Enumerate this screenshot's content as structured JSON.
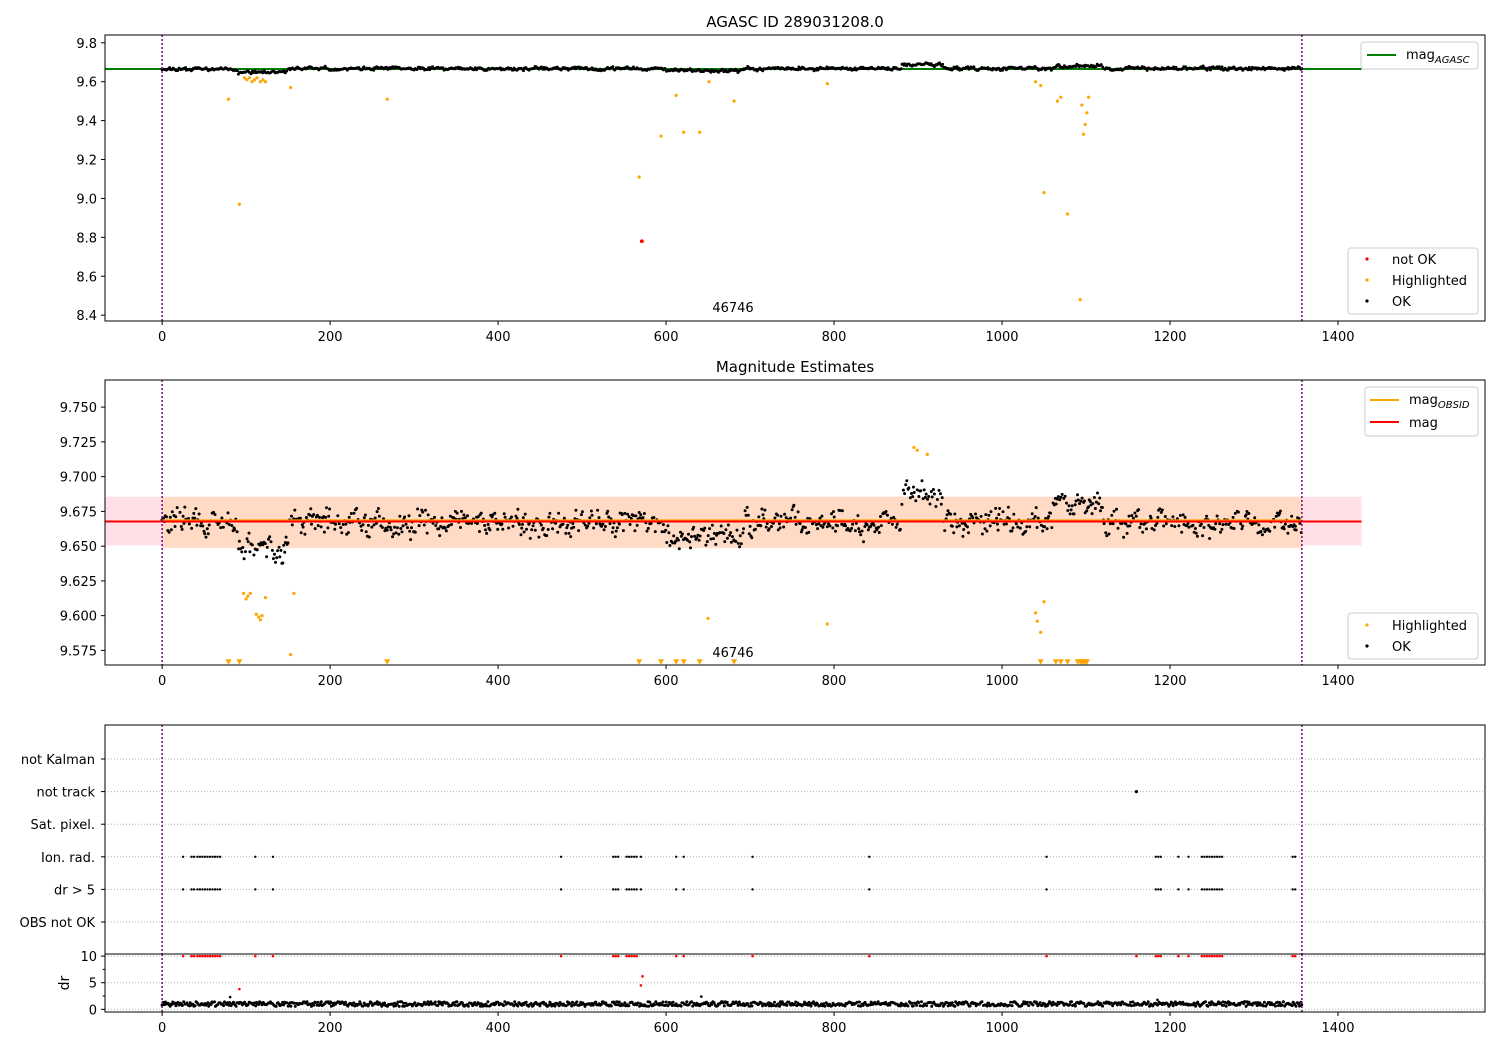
{
  "chart_data": [
    {
      "type": "scatter",
      "title": "AGASC ID 289031208.0",
      "xlim": [
        -68,
        1575
      ],
      "ylim": [
        8.37,
        9.84
      ],
      "xticks": [
        0,
        200,
        400,
        600,
        800,
        1000,
        1200,
        1400
      ],
      "yticks": [
        8.4,
        8.6,
        8.8,
        9.0,
        9.2,
        9.4,
        9.6,
        9.8
      ],
      "ytick_labels": [
        "8.4",
        "8.6",
        "8.8",
        "9.0",
        "9.2",
        "9.4",
        "9.6",
        "9.8"
      ],
      "vlines": [
        0,
        1357
      ],
      "annotation": {
        "text": "46746",
        "x": 678,
        "y": 8.405
      },
      "lines": [
        {
          "label": "mag",
          "subscript": "AGASC",
          "color": "#008000",
          "y": 9.665,
          "x": [
            -68,
            1428
          ]
        }
      ],
      "ok_band": {
        "center": 9.667,
        "spread": 0.012,
        "xmax": 1357
      },
      "highlighted": {
        "x": [
          79,
          92,
          98,
          101,
          104,
          107,
          110,
          113,
          117,
          120,
          123,
          153,
          268,
          568,
          572,
          594,
          612,
          621,
          640,
          651,
          681,
          792,
          1040,
          1046,
          1050,
          1066,
          1070,
          1078,
          1093,
          1095,
          1097,
          1099,
          1101,
          1103
        ],
        "y": [
          9.51,
          8.97,
          9.62,
          9.61,
          9.62,
          9.6,
          9.61,
          9.62,
          9.6,
          9.61,
          9.6,
          9.57,
          9.51,
          9.11,
          8.78,
          9.32,
          9.53,
          9.34,
          9.34,
          9.6,
          9.5,
          9.59,
          9.6,
          9.58,
          9.03,
          9.5,
          9.52,
          8.92,
          8.48,
          9.48,
          9.33,
          9.38,
          9.44,
          9.52
        ]
      },
      "not_ok": {
        "x": [
          571
        ],
        "y": [
          8.78
        ]
      },
      "legends": [
        {
          "location": "upper right",
          "entries": [
            {
              "label": "mag",
              "subscript": "AGASC",
              "marker": "line",
              "color": "#008000"
            }
          ]
        },
        {
          "location": "lower right",
          "entries": [
            {
              "label": "not OK",
              "marker": "dot",
              "color": "#ff0000"
            },
            {
              "label": "Highlighted",
              "marker": "dot",
              "color": "#ffa500"
            },
            {
              "label": "OK",
              "marker": "dot",
              "color": "#000000"
            }
          ]
        }
      ]
    },
    {
      "type": "scatter",
      "title": "Magnitude Estimates",
      "xlim": [
        -68,
        1575
      ],
      "ylim": [
        9.5645,
        9.7695
      ],
      "xticks": [
        0,
        200,
        400,
        600,
        800,
        1000,
        1200,
        1400
      ],
      "yticks": [
        9.575,
        9.6,
        9.625,
        9.65,
        9.675,
        9.7,
        9.725,
        9.75
      ],
      "ytick_labels": [
        "9.575",
        "9.600",
        "9.625",
        "9.650",
        "9.675",
        "9.700",
        "9.725",
        "9.750"
      ],
      "vlines": [
        0,
        1357
      ],
      "annotation": {
        "text": "46746",
        "x": 678,
        "y": 9.5715
      },
      "bands": [
        {
          "ymin": 9.6505,
          "ymax": 9.6855,
          "xmin": -68,
          "xmax": 1428,
          "color": "#ffe0e6"
        },
        {
          "ymin": 9.6485,
          "ymax": 9.6855,
          "xmin": 0,
          "xmax": 1357,
          "color": "#ffd9c0"
        }
      ],
      "lines": [
        {
          "label": "mag",
          "subscript": "OBSID",
          "color": "#ffa500",
          "y": 9.6685,
          "x": [
            0,
            1357
          ]
        },
        {
          "label": "mag",
          "color": "#ff0000",
          "y": 9.6677,
          "x": [
            -68,
            1428
          ]
        }
      ],
      "ok_band": {
        "center": 9.667,
        "spread": 0.012,
        "xmax": 1357
      },
      "highlighted": {
        "x": [
          97,
          100,
          102,
          105,
          112,
          115,
          117,
          119,
          123,
          153,
          157,
          650,
          792,
          1040,
          1042,
          1046,
          1050,
          895,
          899,
          911
        ],
        "y": [
          9.616,
          9.612,
          9.614,
          9.616,
          9.601,
          9.599,
          9.597,
          9.6,
          9.613,
          9.572,
          9.616,
          9.598,
          9.594,
          9.602,
          9.596,
          9.588,
          9.61,
          9.721,
          9.719,
          9.716
        ]
      },
      "below_range": {
        "x": [
          79,
          92,
          268,
          568,
          594,
          612,
          621,
          640,
          681,
          1046,
          1064,
          1070,
          1078,
          1090,
          1093,
          1095,
          1097,
          1099,
          1101
        ],
        "y": 9.5665
      },
      "legends": [
        {
          "location": "upper right",
          "entries": [
            {
              "label": "mag",
              "subscript": "OBSID",
              "marker": "line",
              "color": "#ffa500"
            },
            {
              "label": "mag",
              "marker": "line",
              "color": "#ff0000"
            }
          ]
        },
        {
          "location": "lower right",
          "entries": [
            {
              "label": "Highlighted",
              "marker": "dot",
              "color": "#ffa500"
            },
            {
              "label": "OK",
              "marker": "dot",
              "color": "#000000"
            }
          ]
        }
      ]
    },
    {
      "type": "scatter",
      "xlim": [
        -68,
        1575
      ],
      "vlines": [
        0,
        1357
      ],
      "categories": [
        "not Kalman",
        "not track",
        "Sat. pixel.",
        "Ion. rad.",
        "dr > 5",
        "OBS not OK"
      ],
      "flags": {
        "not track": [
          1160
        ],
        "Ion. rad.": [
          25,
          35,
          38,
          42,
          45,
          48,
          51,
          54,
          57,
          60,
          63,
          66,
          69,
          111,
          132,
          475,
          537,
          540,
          543,
          553,
          556,
          559,
          562,
          565,
          570,
          612,
          621,
          703,
          842,
          1053,
          1183,
          1186,
          1189,
          1210,
          1222,
          1238,
          1241,
          1244,
          1247,
          1250,
          1253,
          1256,
          1259,
          1262,
          1346,
          1349
        ],
        "dr > 5": [
          25,
          35,
          38,
          42,
          45,
          48,
          51,
          54,
          57,
          60,
          63,
          66,
          69,
          111,
          132,
          475,
          537,
          540,
          543,
          553,
          556,
          559,
          562,
          565,
          570,
          612,
          621,
          703,
          842,
          1053,
          1183,
          1186,
          1189,
          1210,
          1222,
          1238,
          1241,
          1244,
          1247,
          1250,
          1253,
          1256,
          1259,
          1262,
          1346,
          1349
        ]
      }
    },
    {
      "type": "scatter",
      "ylabel": "dr",
      "xlim": [
        -68,
        1575
      ],
      "ylim": [
        -0.5,
        10.4
      ],
      "xticks": [
        0,
        200,
        400,
        600,
        800,
        1000,
        1200,
        1400
      ],
      "yticks": [
        0,
        5,
        10
      ],
      "vlines": [
        0,
        1357
      ],
      "red_points": {
        "x": [
          25,
          35,
          38,
          42,
          45,
          48,
          51,
          54,
          57,
          60,
          63,
          66,
          69,
          111,
          132,
          475,
          537,
          540,
          543,
          553,
          556,
          559,
          562,
          565,
          612,
          621,
          703,
          842,
          1053,
          1160,
          1183,
          1186,
          1189,
          1210,
          1222,
          1238,
          1241,
          1244,
          1247,
          1250,
          1253,
          1256,
          1259,
          1262,
          1346,
          1349,
          92,
          570,
          572
        ],
        "y": [
          10,
          10,
          10,
          10,
          10,
          10,
          10,
          10,
          10,
          10,
          10,
          10,
          10,
          10,
          10,
          10,
          10,
          10,
          10,
          10,
          10,
          10,
          10,
          10,
          10,
          10,
          10,
          10,
          10,
          10,
          10,
          10,
          10,
          10,
          10,
          10,
          10,
          10,
          10,
          10,
          10,
          10,
          10,
          10,
          10,
          10,
          3.8,
          4.5,
          6.2
        ]
      },
      "black_points": {
        "x": [
          81,
          642,
          1185
        ],
        "y": [
          2.3,
          2.4,
          1.8
        ]
      },
      "baseline": {
        "center": 1.0,
        "spread": 0.45,
        "xmax": 1357
      }
    }
  ]
}
